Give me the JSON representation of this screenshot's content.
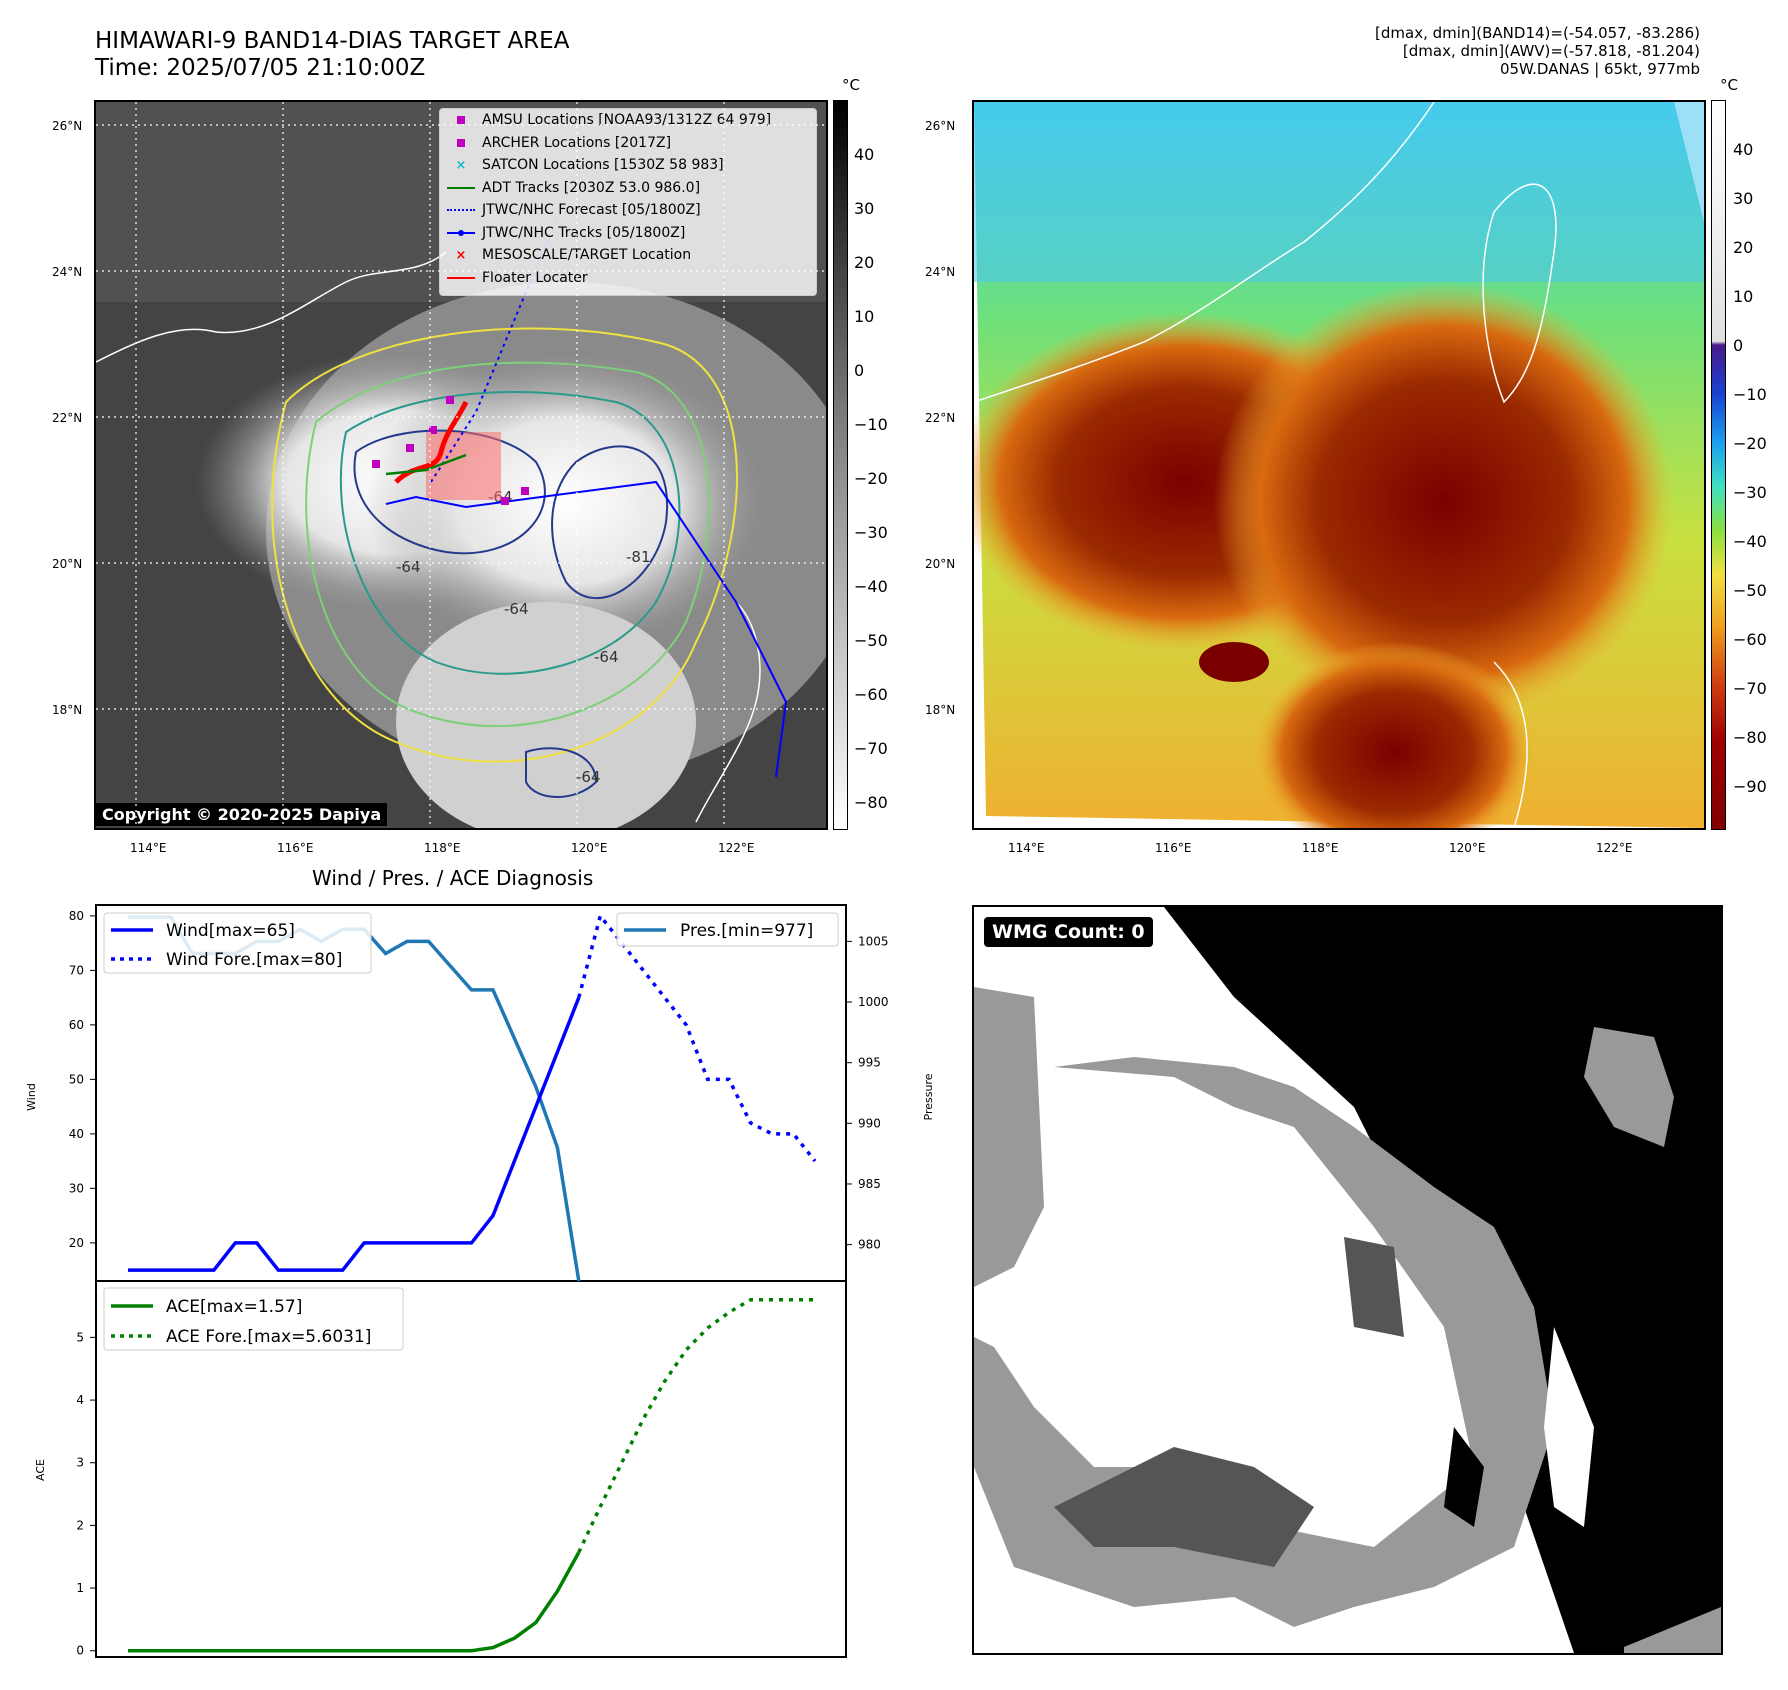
{
  "header": {
    "title_line1": "HIMAWARI-9 BAND14-DIAS TARGET AREA",
    "title_line2": "Time: 2025/07/05 21:10:00Z",
    "info_line1": "[dmax, dmin](BAND14)=(-54.057, -83.286)",
    "info_line2": "[dmax, dmin](AWV)=(-57.818, -81.204)",
    "info_line3": "05W.DANAS | 65kt, 977mb"
  },
  "colors": {
    "wind": "#0000ff",
    "pressure": "#1f77b4",
    "ace": "#008000",
    "track": "#0000ff",
    "adt": "#008000",
    "floater": "#ff0000",
    "amsu": "#c000c0",
    "satcon": "#17becf"
  },
  "map_left": {
    "lon_labels": [
      "114°E",
      "116°E",
      "118°E",
      "120°E",
      "122°E"
    ],
    "lat_labels": [
      "26°N",
      "24°N",
      "22°N",
      "20°N",
      "18°N"
    ],
    "colorbar_unit": "°C",
    "colorbar_ticks": [
      "40",
      "30",
      "20",
      "10",
      "0",
      "−10",
      "−20",
      "−30",
      "−40",
      "−50",
      "−60",
      "−70",
      "−80"
    ],
    "contour_labels": [
      "-64",
      "-64",
      "-81",
      "-64",
      "-64",
      "-64"
    ],
    "copyright": "Copyright © 2020-2025 Dapiya",
    "legend": [
      {
        "icon": "square-magenta",
        "label": "AMSU Locations [NOAA93/1312Z 64 979]"
      },
      {
        "icon": "square-magenta",
        "label": "ARCHER Locations [2017Z]"
      },
      {
        "icon": "x-cyan",
        "label": "SATCON Locations [1530Z 58 983]"
      },
      {
        "icon": "line-green",
        "label": "ADT Tracks [2030Z 53.0 986.0]"
      },
      {
        "icon": "dotted-blue",
        "label": "JTWC/NHC Forecast [05/1800Z]"
      },
      {
        "icon": "line-dot-blue",
        "label": "JTWC/NHC Tracks [05/1800Z]"
      },
      {
        "icon": "x-red",
        "label": "MESOSCALE/TARGET Location"
      },
      {
        "icon": "line-red",
        "label": "Floater Locater"
      }
    ]
  },
  "map_right": {
    "lon_labels": [
      "114°E",
      "116°E",
      "118°E",
      "120°E",
      "122°E"
    ],
    "lat_labels": [
      "26°N",
      "24°N",
      "22°N",
      "20°N",
      "18°N"
    ],
    "colorbar_unit": "°C",
    "colorbar_ticks": [
      "40",
      "30",
      "20",
      "10",
      "0",
      "−10",
      "−20",
      "−30",
      "−40",
      "−50",
      "−60",
      "−70",
      "−80",
      "−90"
    ]
  },
  "diagnosis": {
    "title": "Wind / Pres. / ACE Diagnosis",
    "wind_ylabel": "Wind",
    "pres_ylabel": "Pressure",
    "ace_ylabel": "ACE",
    "legend_wind": "Wind[max=65]",
    "legend_wind_fore": "Wind Fore.[max=80]",
    "legend_pres": "Pres.[min=977]",
    "legend_ace": "ACE[max=1.57]",
    "legend_ace_fore": "ACE Fore.[max=5.6031]",
    "wind_ticks": [
      "20",
      "30",
      "40",
      "50",
      "60",
      "70",
      "80"
    ],
    "pres_ticks": [
      "980",
      "985",
      "990",
      "995",
      "1000",
      "1005"
    ],
    "ace_ticks": [
      "0",
      "1",
      "2",
      "3",
      "4",
      "5"
    ]
  },
  "wmg": {
    "label": "WMG Count: 0"
  },
  "chart_data": [
    {
      "type": "line",
      "title": "Wind / Pres. / ACE Diagnosis",
      "ylabel": "Wind",
      "ylim": [
        13,
        82
      ],
      "series": [
        {
          "name": "Wind[max=65]",
          "x": [
            0,
            1,
            2,
            3,
            4,
            5,
            6,
            7,
            8,
            9,
            10,
            11,
            12,
            13,
            14,
            15,
            16,
            17,
            18,
            19,
            20,
            21
          ],
          "values": [
            15,
            15,
            15,
            15,
            15,
            20,
            20,
            15,
            15,
            15,
            15,
            20,
            20,
            20,
            20,
            20,
            20,
            25,
            35,
            45,
            55,
            65
          ]
        },
        {
          "name": "Wind Fore.[max=80]",
          "x": [
            21,
            22,
            23,
            24,
            25,
            26,
            27,
            28,
            29,
            30,
            31,
            32
          ],
          "values": [
            65,
            80,
            75,
            70,
            65,
            60,
            50,
            50,
            42,
            40,
            40,
            35
          ]
        }
      ]
    },
    {
      "type": "line",
      "ylabel": "Pressure",
      "ylim": [
        977,
        1008
      ],
      "series": [
        {
          "name": "Pres.[min=977]",
          "x": [
            0,
            1,
            2,
            3,
            4,
            5,
            6,
            7,
            8,
            9,
            10,
            11,
            12,
            13,
            14,
            15,
            16,
            17,
            18,
            19,
            20,
            21
          ],
          "values": [
            1007,
            1007,
            1007,
            1004,
            1004,
            1004,
            1005,
            1005,
            1006,
            1005,
            1006,
            1006,
            1004,
            1005,
            1005,
            1003,
            1001,
            1001,
            997,
            993,
            988,
            977
          ]
        }
      ]
    },
    {
      "type": "line",
      "ylabel": "ACE",
      "ylim": [
        -0.1,
        5.9
      ],
      "series": [
        {
          "name": "ACE[max=1.57]",
          "x": [
            0,
            2,
            4,
            6,
            8,
            10,
            12,
            14,
            16,
            17,
            18,
            19,
            20,
            21
          ],
          "values": [
            0,
            0,
            0,
            0,
            0,
            0,
            0,
            0,
            0,
            0.05,
            0.2,
            0.45,
            0.95,
            1.57
          ]
        },
        {
          "name": "ACE Fore.[max=5.6031]",
          "x": [
            21,
            22,
            23,
            24,
            25,
            26,
            27,
            28,
            29,
            30,
            31,
            32
          ],
          "values": [
            1.57,
            2.3,
            3.0,
            3.7,
            4.3,
            4.8,
            5.15,
            5.4,
            5.6,
            5.6,
            5.6,
            5.6
          ]
        }
      ]
    }
  ]
}
